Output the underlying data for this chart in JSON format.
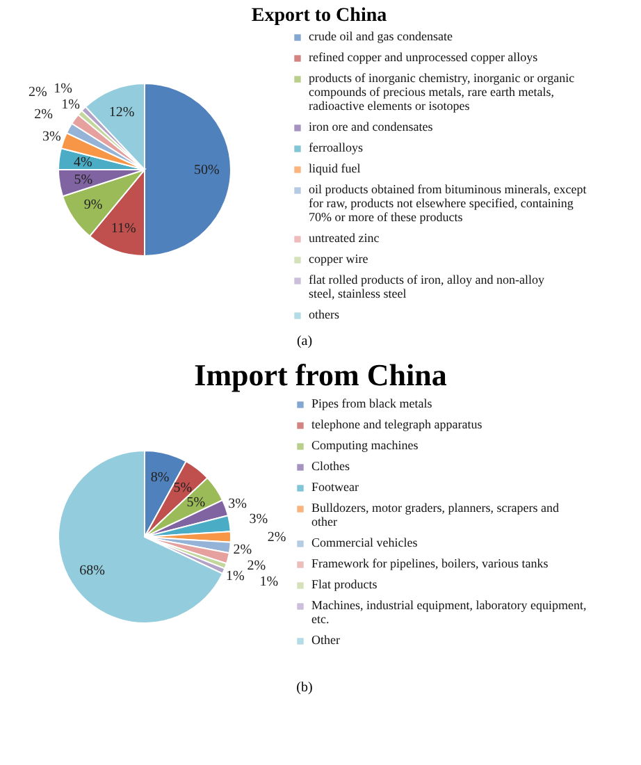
{
  "chart_data": [
    {
      "type": "pie",
      "title": "Export to China",
      "legend": "right",
      "annotations": [
        "(a)"
      ],
      "categories": [
        "crude oil and gas condensate",
        "refined copper and unprocessed copper alloys",
        "products of inorganic chemistry, inorganic or organic compounds of precious metals, rare earth metals, radioactive elements or isotopes",
        "iron ore and condensates",
        "ferroalloys",
        "liquid fuel",
        "oil products obtained from bituminous minerals, except for raw, products not elsewhere specified, containing 70% or more of these products",
        "untreated zinc",
        "copper wire",
        "flat rolled products of iron, alloy and non-alloy steel, stainless steel",
        "others"
      ],
      "values": [
        50,
        11,
        9,
        5,
        4,
        3,
        2,
        2,
        1,
        1,
        12
      ],
      "value_labels": [
        "50%",
        "11%",
        "9%",
        "5%",
        "4%",
        "3%",
        "2%",
        "2%",
        "1%",
        "1%",
        "12%"
      ],
      "colors": [
        "#4f81bd",
        "#c0504d",
        "#9bbb59",
        "#8064a2",
        "#4bacc6",
        "#f79646",
        "#95b3d7",
        "#e6a09e",
        "#c3d69b",
        "#b3a2c7",
        "#93cddd"
      ]
    },
    {
      "type": "pie",
      "title": "Import from China",
      "legend": "right",
      "annotations": [
        "(b)"
      ],
      "categories": [
        "Pipes from black metals",
        "telephone and telegraph apparatus",
        "Computing machines",
        "Clothes",
        "Footwear",
        "Bulldozers, motor graders, planners, scrapers and other",
        "Commercial vehicles",
        "Framework for pipelines, boilers, various tanks",
        "Flat products",
        "Machines, industrial equipment, laboratory equipment, etc.",
        "Other"
      ],
      "values": [
        8,
        5,
        5,
        3,
        3,
        2,
        2,
        2,
        1,
        1,
        68
      ],
      "value_labels": [
        "8%",
        "5%",
        "5%",
        "3%",
        "3%",
        "2%",
        "2%",
        "2%",
        "1%",
        "1%",
        "68%"
      ],
      "colors": [
        "#4f81bd",
        "#c0504d",
        "#9bbb59",
        "#8064a2",
        "#4bacc6",
        "#f79646",
        "#95b3d7",
        "#e6a09e",
        "#c3d69b",
        "#b3a2c7",
        "#8ed3ea"
      ]
    }
  ]
}
